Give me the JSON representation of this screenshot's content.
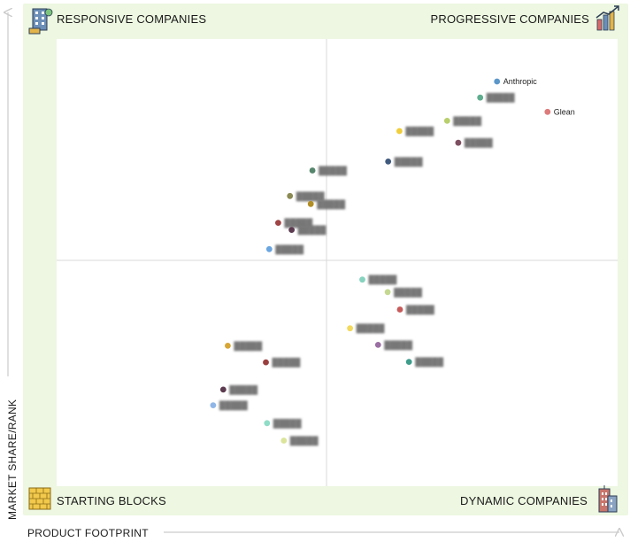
{
  "chart_data": {
    "type": "scatter",
    "title": "",
    "xlabel": "PRODUCT FOOTPRINT",
    "ylabel": "MARKET SHARE/RANK",
    "xlim": [
      0,
      100
    ],
    "ylim": [
      0,
      100
    ],
    "grid": false,
    "quadrants": {
      "top_left": "RESPONSIVE COMPANIES",
      "top_right": "PROGRESSIVE COMPANIES",
      "bottom_left": "STARTING BLOCKS",
      "bottom_right": "DYNAMIC COMPANIES"
    },
    "points": [
      {
        "label": "Anthropic",
        "x": 78.5,
        "y": 90.5,
        "color": "#5b97c9",
        "label_visible": true
      },
      {
        "label": "Glean",
        "x": 87.5,
        "y": 83.7,
        "color": "#dd7b7b",
        "label_visible": true
      },
      {
        "label": "",
        "x": 75.5,
        "y": 86.9,
        "color": "#5fae8f",
        "label_visible": false
      },
      {
        "label": "",
        "x": 69.6,
        "y": 81.7,
        "color": "#b8cf6c",
        "label_visible": false
      },
      {
        "label": "",
        "x": 61.1,
        "y": 79.4,
        "color": "#f0cd3a",
        "label_visible": false
      },
      {
        "label": "",
        "x": 71.6,
        "y": 76.8,
        "color": "#7e4f61",
        "label_visible": false
      },
      {
        "label": "",
        "x": 59.1,
        "y": 72.6,
        "color": "#405a7d",
        "label_visible": false
      },
      {
        "label": "",
        "x": 45.6,
        "y": 70.6,
        "color": "#55866b",
        "label_visible": false
      },
      {
        "label": "",
        "x": 41.6,
        "y": 64.9,
        "color": "#8a8a53",
        "label_visible": false
      },
      {
        "label": "",
        "x": 45.3,
        "y": 63.1,
        "color": "#b28e24",
        "label_visible": false
      },
      {
        "label": "",
        "x": 39.5,
        "y": 58.9,
        "color": "#a04545",
        "label_visible": false
      },
      {
        "label": "",
        "x": 41.9,
        "y": 57.3,
        "color": "#5c3a4f",
        "label_visible": false
      },
      {
        "label": "",
        "x": 37.9,
        "y": 53.0,
        "color": "#6aa6e0",
        "label_visible": false
      },
      {
        "label": "",
        "x": 54.5,
        "y": 46.2,
        "color": "#86d3bf",
        "label_visible": false
      },
      {
        "label": "",
        "x": 59.0,
        "y": 43.4,
        "color": "#c5d891",
        "label_visible": false
      },
      {
        "label": "",
        "x": 61.2,
        "y": 39.5,
        "color": "#c75a5a",
        "label_visible": false
      },
      {
        "label": "",
        "x": 52.3,
        "y": 35.3,
        "color": "#f3d95e",
        "label_visible": false
      },
      {
        "label": "",
        "x": 57.3,
        "y": 31.6,
        "color": "#9b6fa3",
        "label_visible": false
      },
      {
        "label": "",
        "x": 62.8,
        "y": 27.8,
        "color": "#3e9c8b",
        "label_visible": false
      },
      {
        "label": "",
        "x": 30.5,
        "y": 31.4,
        "color": "#d7a635",
        "label_visible": false
      },
      {
        "label": "",
        "x": 37.3,
        "y": 27.7,
        "color": "#9a3f3f",
        "label_visible": false
      },
      {
        "label": "",
        "x": 29.7,
        "y": 21.6,
        "color": "#5c3a4f",
        "label_visible": false
      },
      {
        "label": "",
        "x": 27.9,
        "y": 18.1,
        "color": "#8fb6e6",
        "label_visible": false
      },
      {
        "label": "",
        "x": 37.5,
        "y": 14.1,
        "color": "#8fdcc7",
        "label_visible": false
      },
      {
        "label": "",
        "x": 40.5,
        "y": 10.2,
        "color": "#dbe49a",
        "label_visible": false
      }
    ]
  },
  "colors": {
    "background_band": "#edf7e1",
    "plot_area": "#ffffff",
    "divider": "#d9d9d9",
    "axis_arrow": "#cccccc"
  },
  "icons": {
    "top_left": "office-building-icon",
    "top_right": "growth-chart-icon",
    "bottom_left": "brick-wall-icon",
    "bottom_right": "skyscraper-icon"
  }
}
